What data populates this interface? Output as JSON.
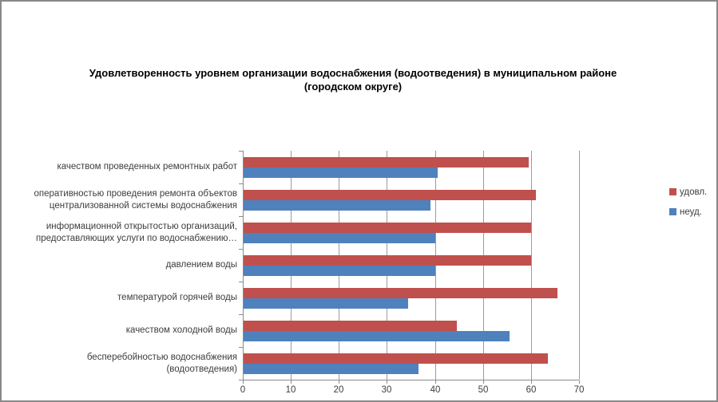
{
  "frame": {
    "background": "#ffffff",
    "border_color": "#888888"
  },
  "chart_data": {
    "type": "bar",
    "orientation": "horizontal",
    "title": "Удовлетворенность уровнем организации водоснабжения (водоотведения) в муниципальном районе\n(городском округе)",
    "categories": [
      [
        "качеством проведенных ремонтных работ"
      ],
      [
        "оперативностью проведения ремонта объектов",
        "централизованной системы водоснабжения"
      ],
      [
        "информационной открытостью организаций,",
        "предоставляющих услуги по водоснабжению…"
      ],
      [
        "давлением воды"
      ],
      [
        "температурой горячей воды"
      ],
      [
        "качеством холодной воды"
      ],
      [
        "бесперебойностью водоснабжения",
        "(водоотведения)"
      ]
    ],
    "series": [
      {
        "name": "удовл.",
        "color": "#C0504D",
        "values": [
          59.5,
          61,
          60,
          60,
          65.5,
          44.5,
          63.5
        ]
      },
      {
        "name": "неуд.",
        "color": "#4F81BD",
        "values": [
          40.5,
          39,
          40,
          40,
          34.5,
          55.5,
          36.5
        ]
      }
    ],
    "x_axis": {
      "min": 0,
      "max": 70,
      "step": 10,
      "tick_labels": [
        "0",
        "10",
        "20",
        "30",
        "40",
        "50",
        "60",
        "70"
      ]
    },
    "grid": true,
    "legend_position": "right",
    "colors": {
      "gridline": "#9c9c9c",
      "axis": "#8a8a8a",
      "text": "#3d3d3d",
      "title": "#000000"
    }
  }
}
